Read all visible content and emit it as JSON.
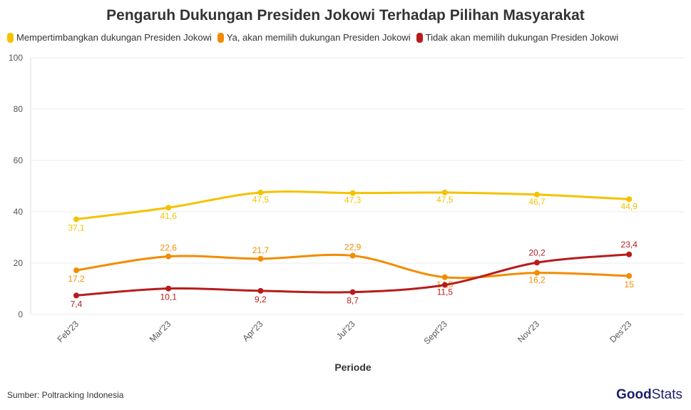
{
  "chart_data": {
    "type": "line",
    "title": "Pengaruh Dukungan Presiden Jokowi Terhadap Pilihan Masyarakat",
    "xlabel": "Periode",
    "ylabel": "",
    "categories": [
      "Feb'23",
      "Mar'23",
      "Apr'23",
      "Jul'23",
      "Sept'23",
      "Nov'23",
      "Des'23"
    ],
    "ylim": [
      0,
      100
    ],
    "yticks": [
      0,
      20,
      40,
      60,
      80,
      100
    ],
    "grid": true,
    "legend": "top-left",
    "series": [
      {
        "name": "Mempertimbangkan dukungan Presiden Jokowi",
        "color": "#f5c200",
        "values": [
          37.1,
          41.6,
          47.5,
          47.3,
          47.5,
          46.7,
          44.9
        ],
        "labels": [
          "37,1",
          "41,6",
          "47,5",
          "47,3",
          "47,5",
          "46,7",
          "44,9"
        ]
      },
      {
        "name": "Ya, akan memilih dukungan Presiden Jokowi",
        "color": "#f28c00",
        "values": [
          17.2,
          22.6,
          21.7,
          22.9,
          14.5,
          16.2,
          15
        ],
        "labels": [
          "17,2",
          "22,6",
          "21,7",
          "22,9",
          "14,5",
          "16,2",
          "15"
        ]
      },
      {
        "name": "Tidak akan memilih dukungan Presiden Jokowi",
        "color": "#b71c1c",
        "values": [
          7.4,
          10.1,
          9.2,
          8.7,
          11.5,
          20.2,
          23.4
        ],
        "labels": [
          "7,4",
          "10,1",
          "9,2",
          "8,7",
          "11,5",
          "20,2",
          "23,4"
        ]
      }
    ]
  },
  "source": "Sumber: Poltracking Indonesia",
  "logo": {
    "bold": "Good",
    "light": "Stats"
  }
}
